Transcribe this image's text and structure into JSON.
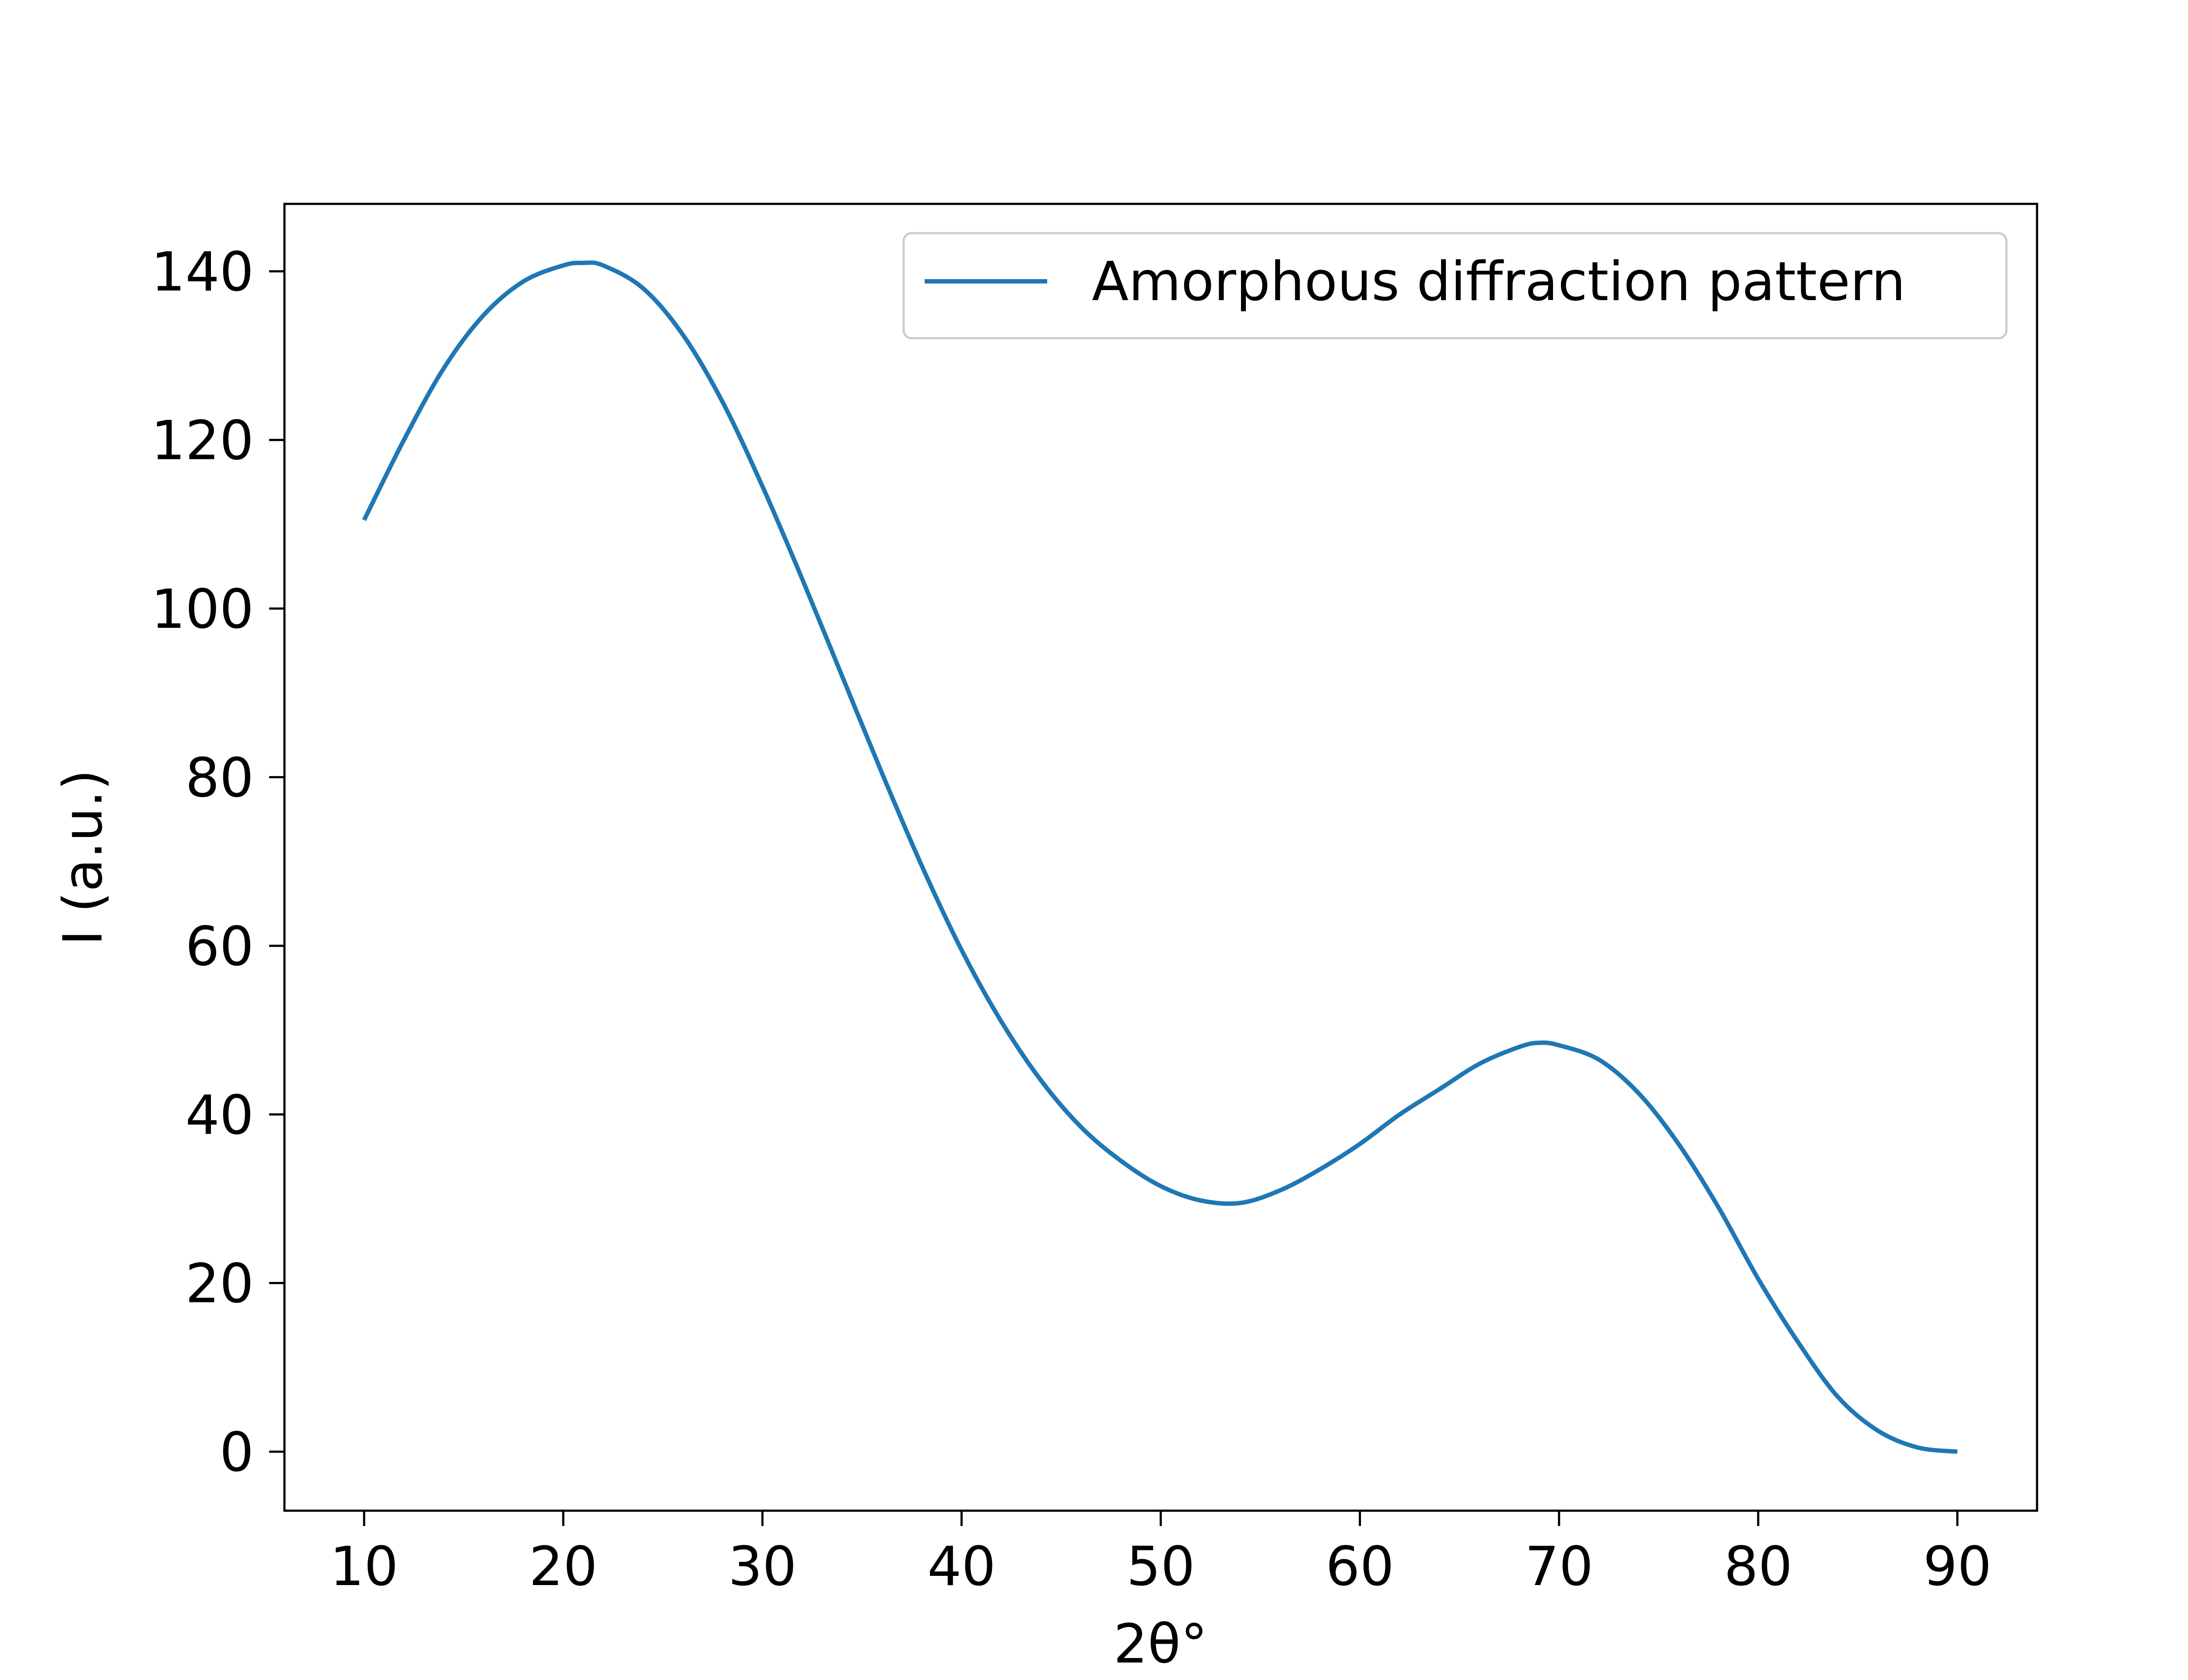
{
  "chart_data": {
    "type": "line",
    "title": "",
    "xlabel": "2θ°",
    "ylabel": "I (a.u.)",
    "xlim": [
      6,
      94
    ],
    "ylim": [
      -7,
      148
    ],
    "xticks": [
      10,
      20,
      30,
      40,
      50,
      60,
      70,
      80,
      90
    ],
    "yticks": [
      0,
      20,
      40,
      60,
      80,
      100,
      120,
      140
    ],
    "grid": false,
    "legend_position": "upper right",
    "series": [
      {
        "name": "Amorphous diffraction pattern",
        "color": "#1f77b4",
        "x": [
          10,
          12,
          14,
          16,
          18,
          20,
          21,
          22,
          24,
          26,
          28,
          30,
          32,
          34,
          36,
          38,
          40,
          42,
          44,
          46,
          48,
          50,
          52,
          54,
          56,
          58,
          60,
          62,
          64,
          66,
          68,
          69,
          70,
          72,
          74,
          76,
          78,
          80,
          82,
          84,
          86,
          88,
          90
        ],
        "y": [
          110.5,
          120,
          128.5,
          134.8,
          138.8,
          140.7,
          141,
          140.7,
          138,
          132.5,
          124.5,
          114.5,
          103.5,
          92,
          80.5,
          69.5,
          59.5,
          51,
          44,
          38.5,
          34.5,
          31.5,
          29.8,
          29.5,
          31,
          33.5,
          36.5,
          40,
          43,
          46,
          48,
          48.5,
          48.2,
          46.5,
          42.5,
          36.5,
          29,
          20.5,
          13,
          6.5,
          2.5,
          0.5,
          0
        ]
      }
    ]
  }
}
